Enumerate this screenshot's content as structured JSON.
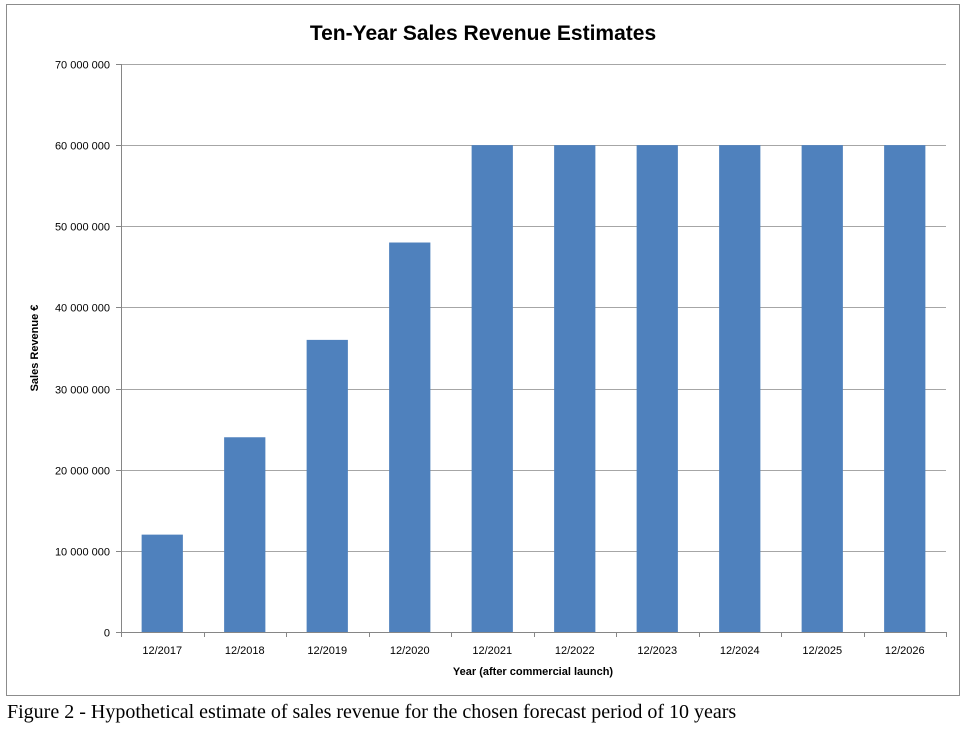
{
  "caption": "Figure 2 - Hypothetical estimate of sales revenue for the chosen forecast period of 10 years",
  "colors": {
    "bar": "#4f81bd",
    "grid": "#a6a6a6",
    "axis": "#868686",
    "text": "#000000"
  },
  "chart_data": {
    "type": "bar",
    "title": "Ten-Year Sales Revenue Estimates",
    "xlabel": "Year (after commercial launch)",
    "ylabel": "Sales Revenue €",
    "categories": [
      "12/2017",
      "12/2018",
      "12/2019",
      "12/2020",
      "12/2021",
      "12/2022",
      "12/2023",
      "12/2024",
      "12/2025",
      "12/2026"
    ],
    "values": [
      12000000,
      24000000,
      36000000,
      48000000,
      60000000,
      60000000,
      60000000,
      60000000,
      60000000,
      60000000
    ],
    "ylim": [
      0,
      70000000
    ],
    "yticks": [
      {
        "value": 0,
        "label": "0"
      },
      {
        "value": 10000000,
        "label": "10 000 000"
      },
      {
        "value": 20000000,
        "label": "20 000 000"
      },
      {
        "value": 30000000,
        "label": "30 000 000"
      },
      {
        "value": 40000000,
        "label": "40 000 000"
      },
      {
        "value": 50000000,
        "label": "50 000 000"
      },
      {
        "value": 60000000,
        "label": "60 000 000"
      },
      {
        "value": 70000000,
        "label": "70 000 000"
      }
    ],
    "grid": true,
    "legend": "none"
  }
}
